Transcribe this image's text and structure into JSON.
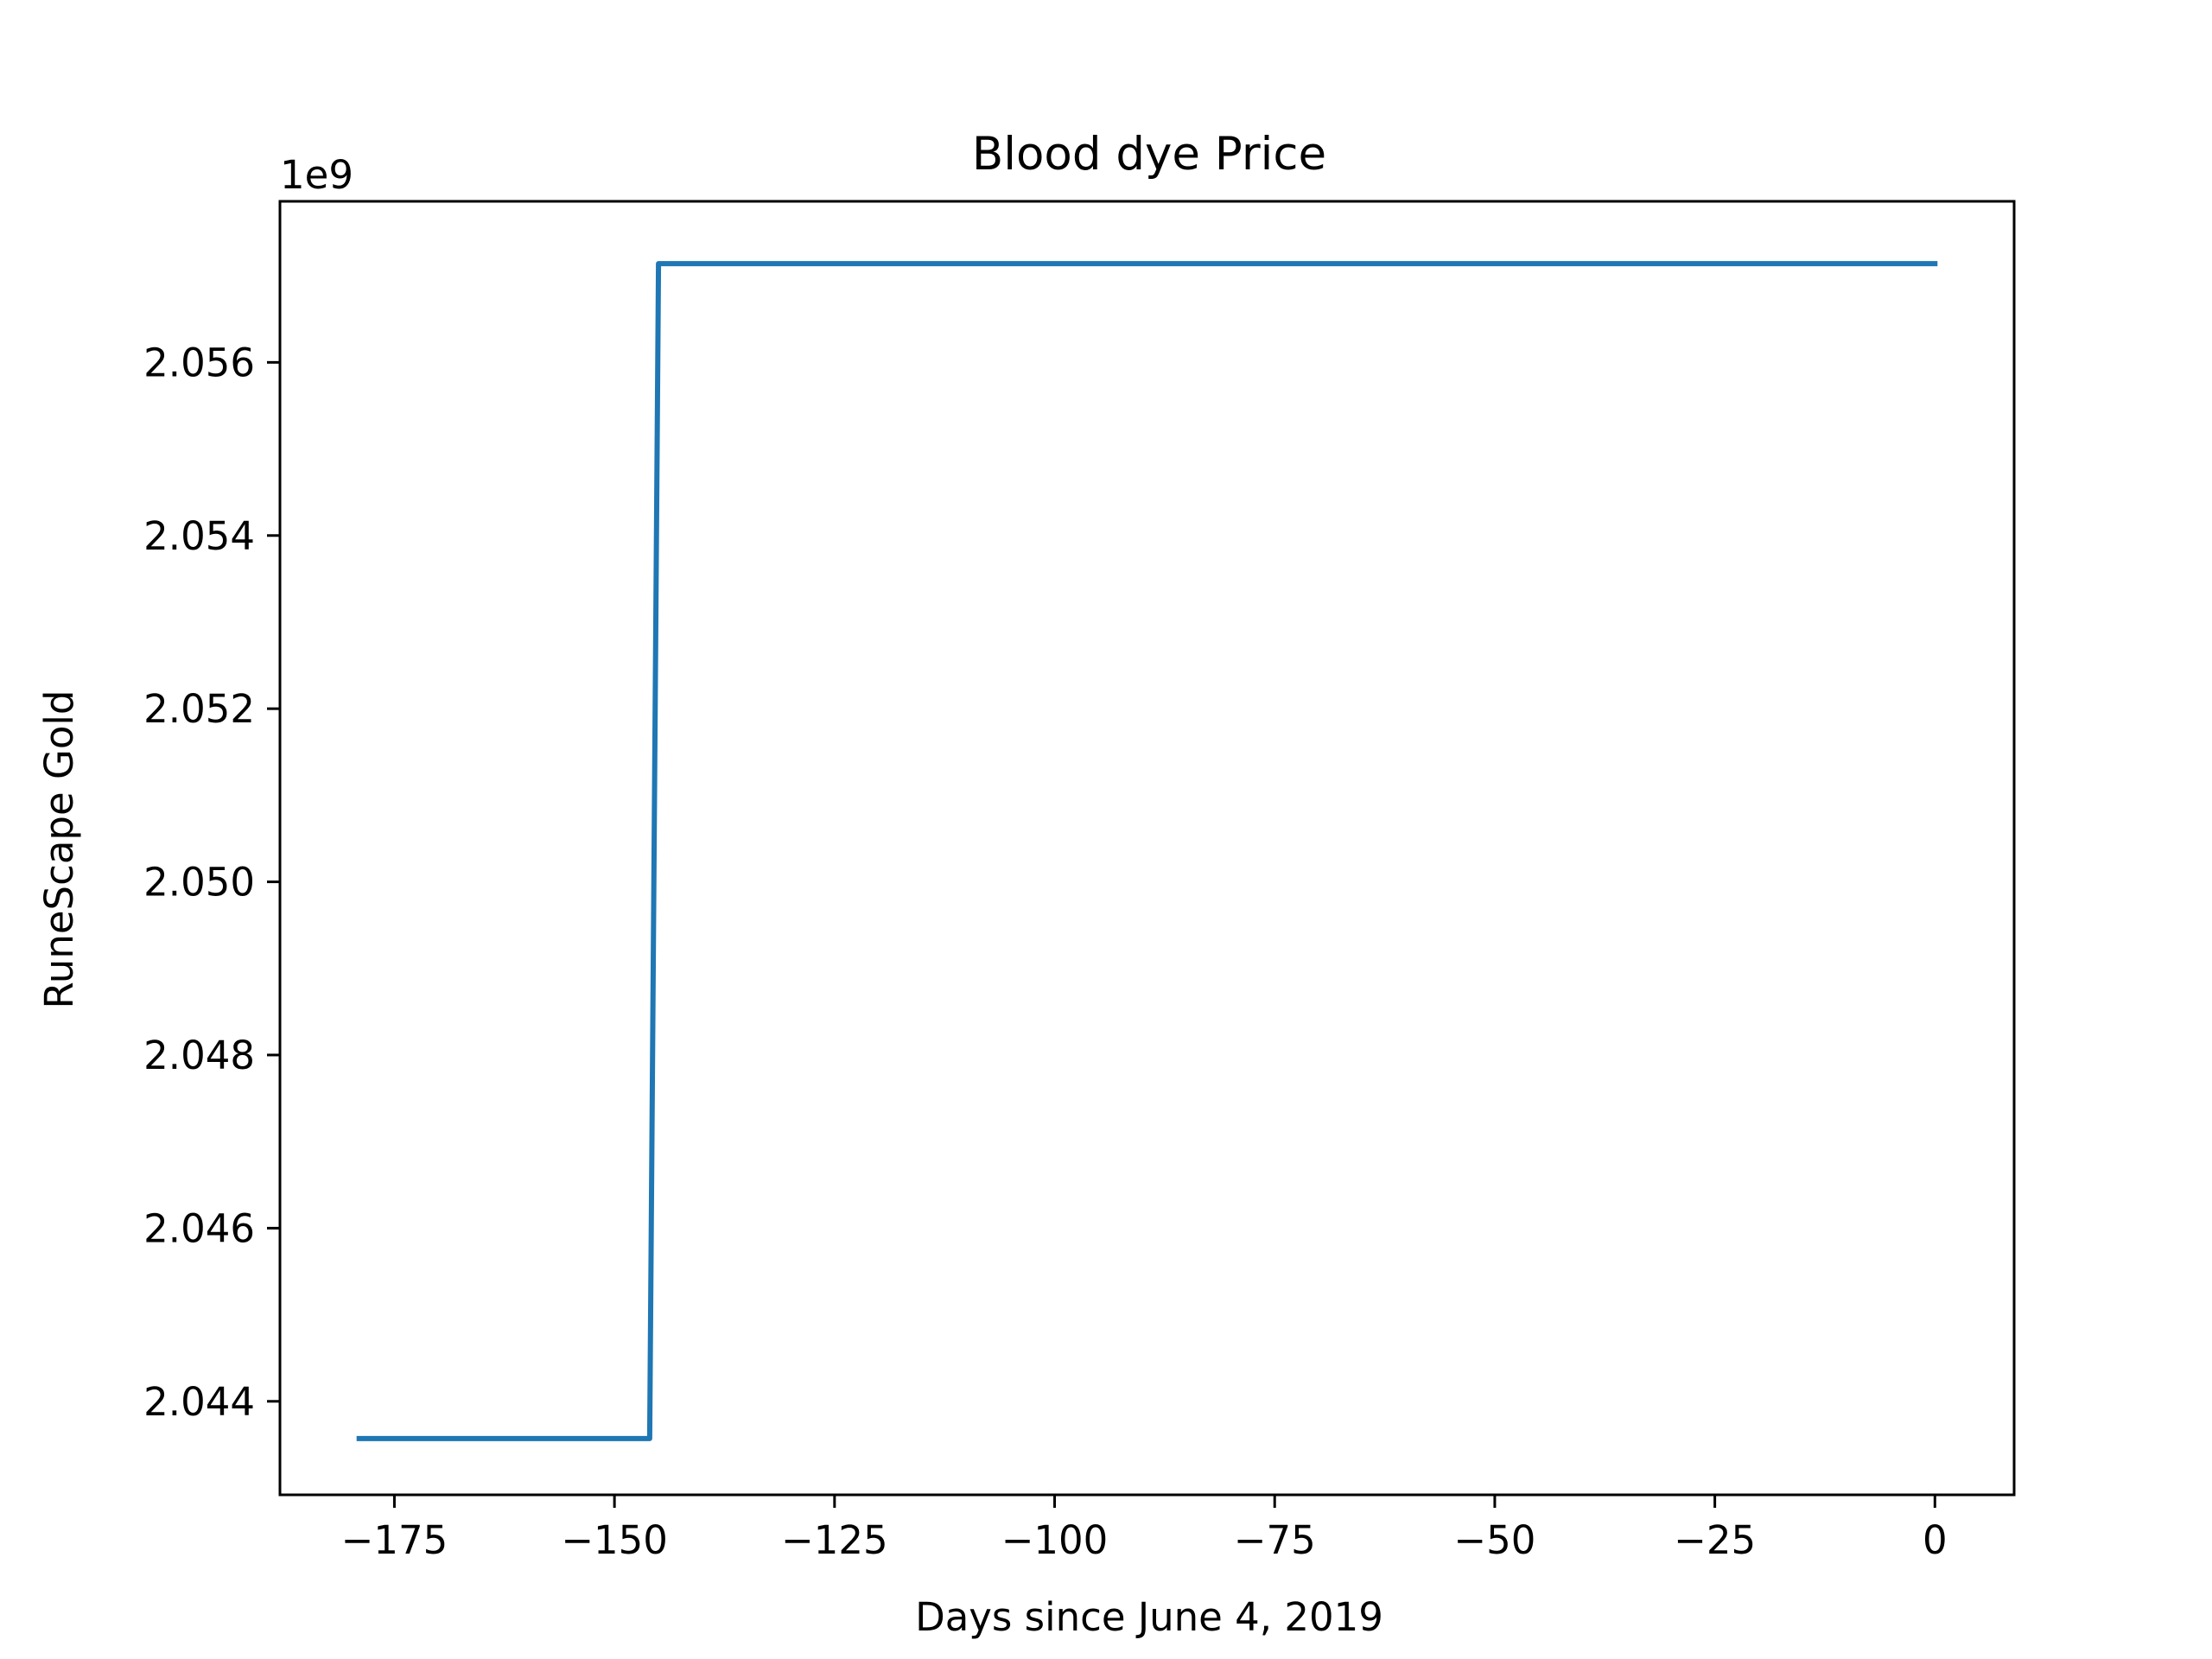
{
  "chart_data": {
    "type": "line",
    "title": "Blood dye Price",
    "xlabel": "Days since June 4, 2019",
    "ylabel": "RuneScape Gold",
    "y_offset_label": "1e9",
    "xlim": [
      -188,
      9
    ],
    "ylim": [
      2.04292,
      2.05786
    ],
    "x_ticks": [
      -175,
      -150,
      -125,
      -100,
      -75,
      -50,
      -25,
      0
    ],
    "x_tick_labels": [
      "−175",
      "−150",
      "−125",
      "−100",
      "−75",
      "−50",
      "−25",
      "0"
    ],
    "y_ticks": [
      2.044,
      2.046,
      2.048,
      2.05,
      2.052,
      2.054,
      2.056
    ],
    "y_tick_labels": [
      "2.044",
      "2.046",
      "2.048",
      "2.050",
      "2.052",
      "2.054",
      "2.056"
    ],
    "grid": false,
    "legend": "none",
    "series": [
      {
        "color": "#1f77b4",
        "x": [
          -179,
          -146,
          -145,
          0
        ],
        "y": [
          2.04357,
          2.04357,
          2.05714,
          2.05714
        ]
      }
    ]
  }
}
